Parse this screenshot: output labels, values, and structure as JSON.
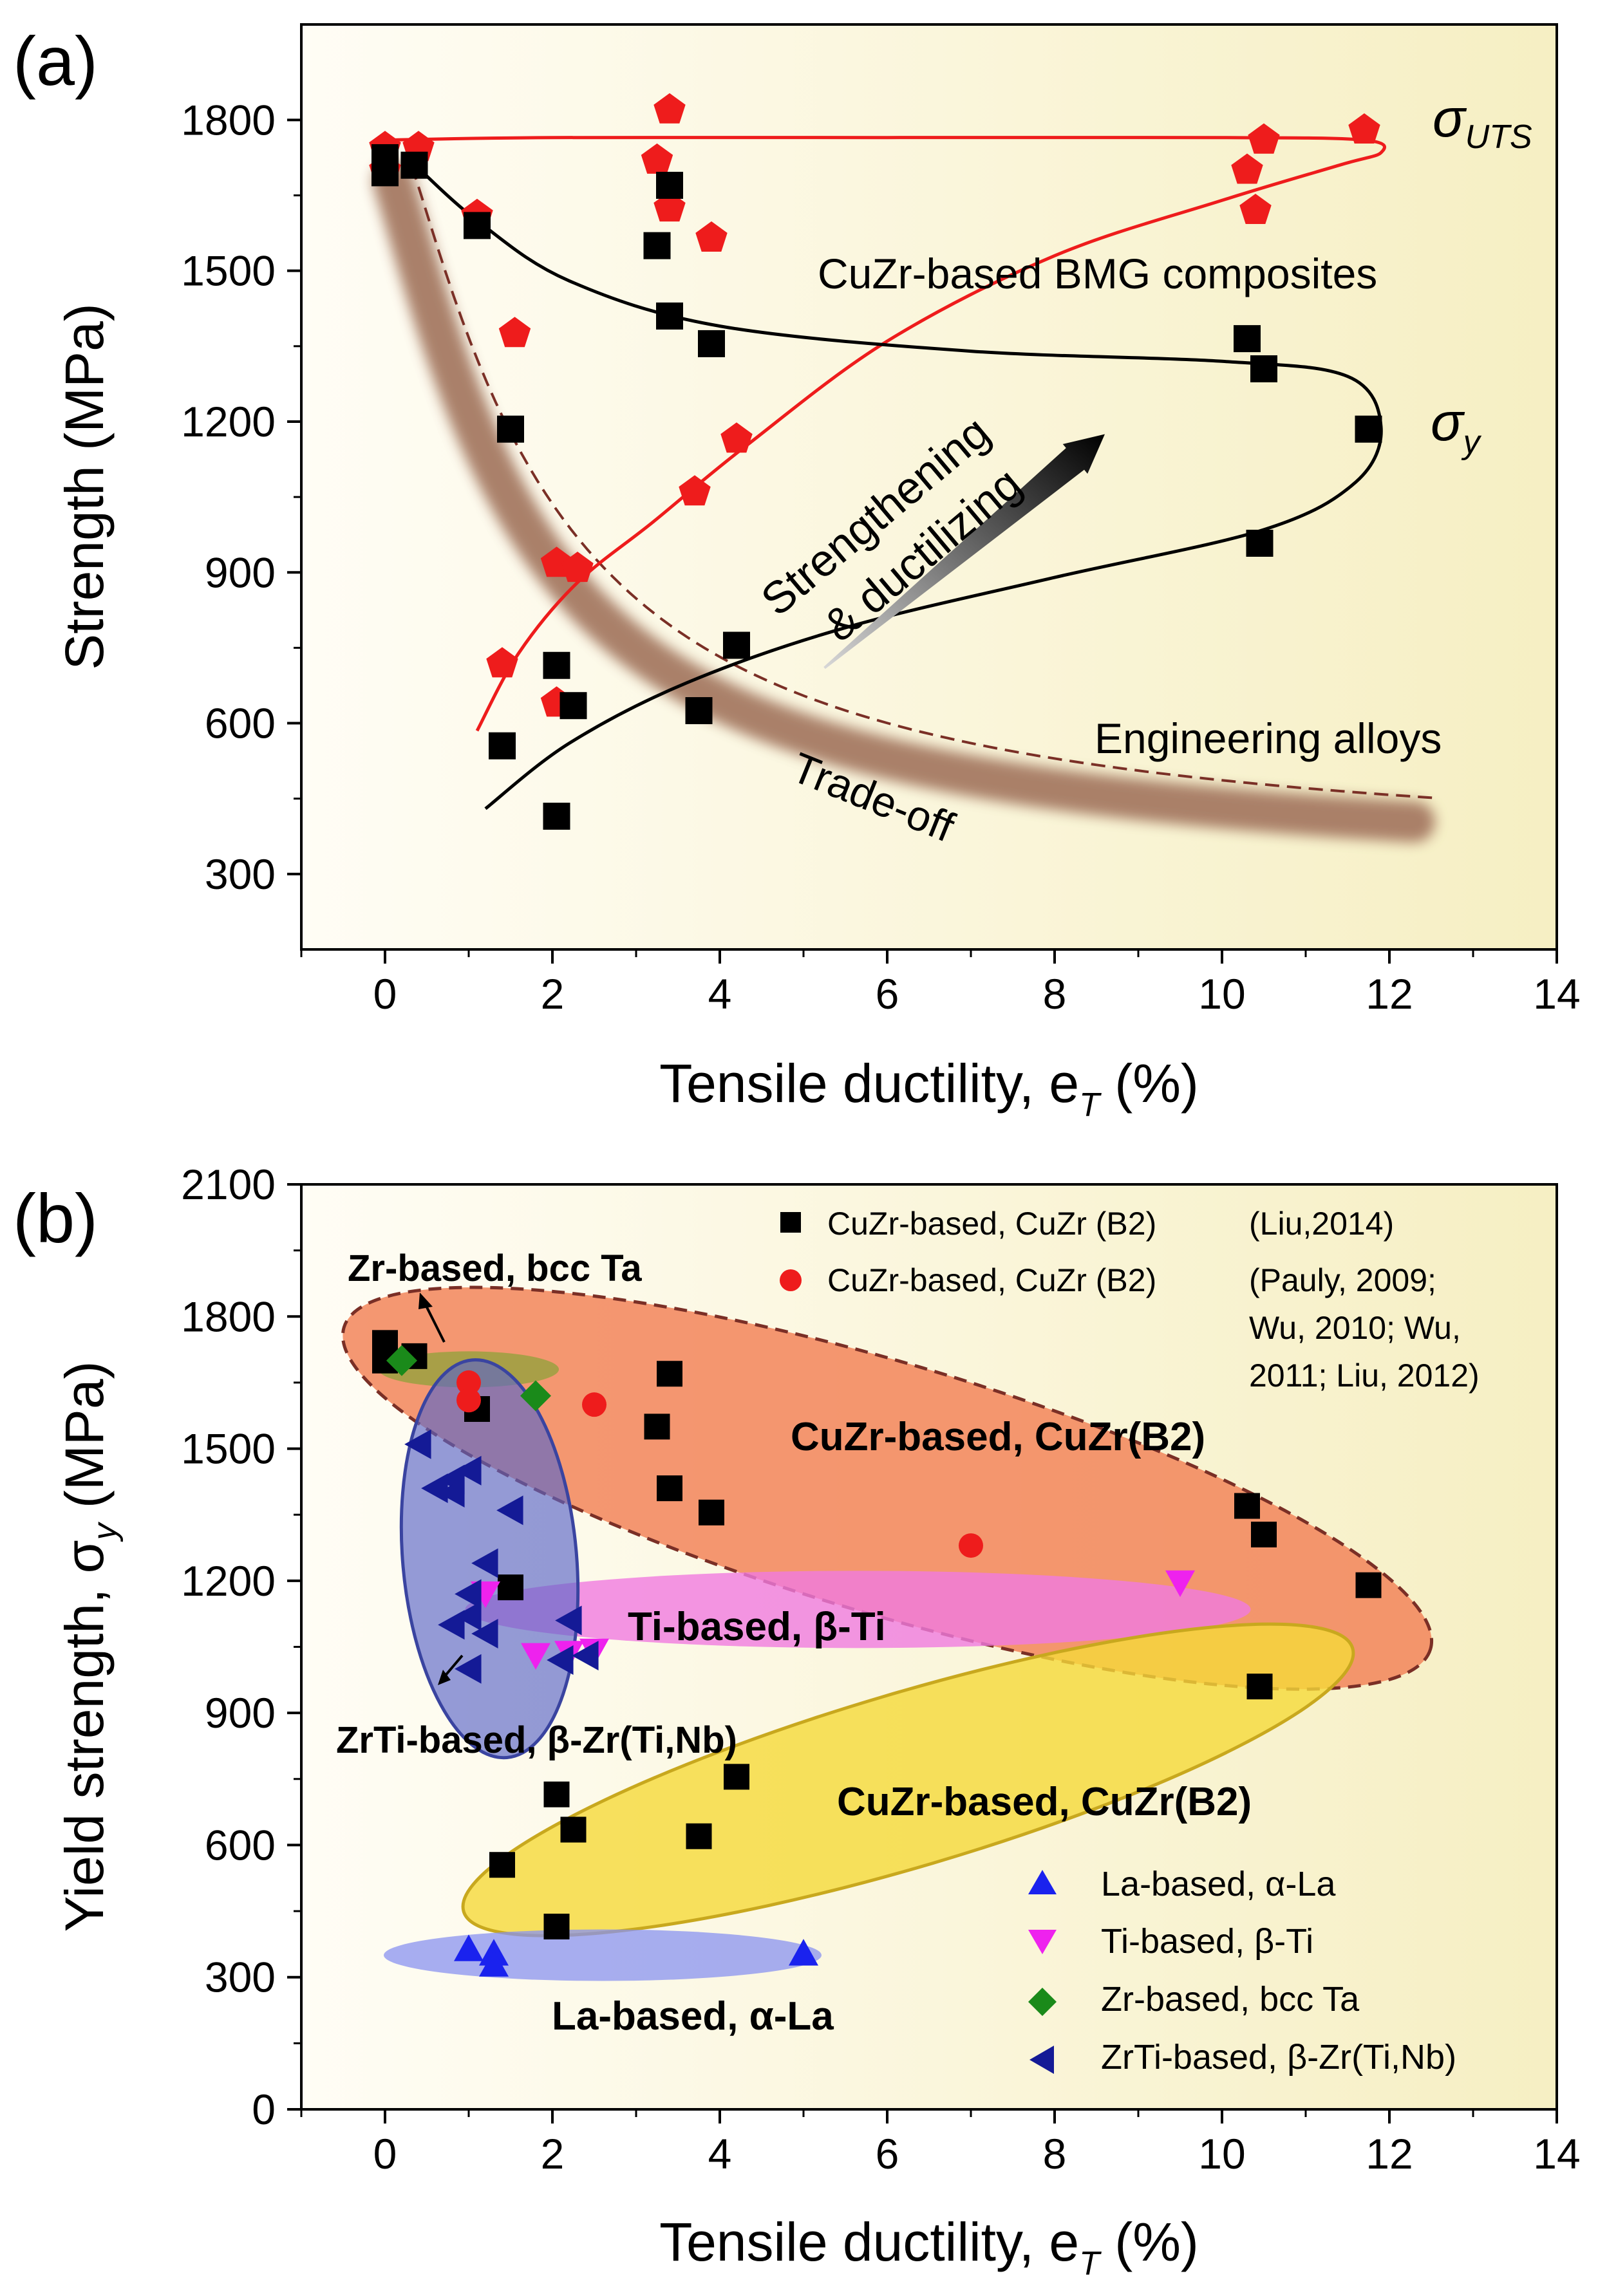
{
  "chart_data": [
    {
      "panel_label": "(a)",
      "type": "scatter",
      "xlabel": "Tensile ductility, e",
      "xlabel_sub": "T",
      "xlabel_unit": " (%)",
      "ylabel": "Strength (MPa)",
      "xlim": [
        -1,
        14
      ],
      "ylim": [
        150,
        1990
      ],
      "xticks": [
        0,
        2,
        4,
        6,
        8,
        10,
        12,
        14
      ],
      "yticks": [
        300,
        600,
        900,
        1200,
        1500,
        1800
      ],
      "colors": {
        "bg_left": "#fefcf3",
        "bg_right": "#f7f1c8",
        "red": "#ee1c1c",
        "black": "#000000",
        "band": "#a67a63",
        "band_dash": "#7a2f26"
      },
      "series": [
        {
          "name": "sigma_UTS",
          "marker": "pentagon",
          "color": "#ee1c1c",
          "points": [
            [
              0,
              1745
            ],
            [
              0,
              1700
            ],
            [
              0.4,
              1745
            ],
            [
              1.1,
              1610
            ],
            [
              1.55,
              1375
            ],
            [
              2.05,
              918
            ],
            [
              2.3,
              908
            ],
            [
              1.4,
              718
            ],
            [
              2.05,
              640
            ],
            [
              3.25,
              1720
            ],
            [
              3.4,
              1820
            ],
            [
              3.4,
              1625
            ],
            [
              3.9,
              1565
            ],
            [
              3.7,
              1060
            ],
            [
              4.2,
              1165
            ],
            [
              10.3,
              1700
            ],
            [
              10.4,
              1620
            ],
            [
              10.5,
              1760
            ],
            [
              11.7,
              1780
            ]
          ]
        },
        {
          "name": "sigma_y",
          "marker": "square",
          "color": "#000000",
          "points": [
            [
              0,
              1725
            ],
            [
              0,
              1695
            ],
            [
              0.35,
              1710
            ],
            [
              1.1,
              1590
            ],
            [
              1.5,
              1185
            ],
            [
              1.4,
              555
            ],
            [
              2.05,
              715
            ],
            [
              2.05,
              415
            ],
            [
              2.25,
              635
            ],
            [
              3.25,
              1550
            ],
            [
              3.4,
              1670
            ],
            [
              3.4,
              1410
            ],
            [
              3.9,
              1355
            ],
            [
              3.75,
              625
            ],
            [
              4.2,
              755
            ],
            [
              10.3,
              1365
            ],
            [
              10.5,
              1305
            ],
            [
              10.45,
              958
            ],
            [
              11.75,
              1185
            ]
          ]
        }
      ],
      "annotations": [
        "CuZr-based BMG composites",
        "Engineering alloys",
        "Trade-off",
        "Strengthening",
        "& ductilizing"
      ],
      "curve_labels": {
        "uts_main": "σ",
        "uts_sub": "UTS",
        "y_main": "σ",
        "y_sub": "y"
      }
    },
    {
      "panel_label": "(b)",
      "type": "scatter",
      "xlabel": "Tensile ductility, e",
      "xlabel_sub": "T",
      "xlabel_unit": " (%)",
      "ylabel": "Yield strength, σ",
      "ylabel_sub": "y",
      "ylabel_unit": " (MPa)",
      "xlim": [
        -1,
        14
      ],
      "ylim": [
        0,
        2100
      ],
      "xticks": [
        0,
        2,
        4,
        6,
        8,
        10,
        12,
        14
      ],
      "yticks": [
        0,
        300,
        600,
        900,
        1200,
        1500,
        1800,
        2100
      ],
      "colors": {
        "square": "#000000",
        "circle": "#ee1c1c",
        "triangle_up": "#1a22ee",
        "triangle_down": "#ee22ee",
        "diamond": "#1a8a1a",
        "triangle_left": "#141a96"
      },
      "series": [
        {
          "name": "CuZr-based, CuZr (B2)",
          "marker": "square",
          "color": "#000000",
          "points": [
            [
              0,
              1740
            ],
            [
              0,
              1700
            ],
            [
              0.35,
              1710
            ],
            [
              1.1,
              1590
            ],
            [
              1.5,
              1185
            ],
            [
              1.4,
              555
            ],
            [
              2.05,
              715
            ],
            [
              2.05,
              415
            ],
            [
              2.25,
              635
            ],
            [
              3.25,
              1550
            ],
            [
              3.4,
              1670
            ],
            [
              3.4,
              1410
            ],
            [
              3.9,
              1355
            ],
            [
              3.75,
              620
            ],
            [
              4.2,
              755
            ],
            [
              10.3,
              1370
            ],
            [
              10.5,
              1305
            ],
            [
              10.45,
              960
            ],
            [
              11.75,
              1190
            ]
          ]
        },
        {
          "name": "CuZr-based, CuZr (B2)",
          "marker": "circle",
          "color": "#ee1c1c",
          "points": [
            [
              1,
              1650
            ],
            [
              1,
              1610
            ],
            [
              2.5,
              1600
            ],
            [
              7,
              1280
            ]
          ]
        },
        {
          "name": "La-based, α-La",
          "marker": "triangle-up",
          "color": "#1a22ee",
          "points": [
            [
              1,
              365
            ],
            [
              1.3,
              355
            ],
            [
              1.3,
              330
            ],
            [
              5,
              355
            ]
          ]
        },
        {
          "name": "Ti-based, β-Ti",
          "marker": "triangle-down",
          "color": "#ee22ee",
          "points": [
            [
              1.2,
              1170
            ],
            [
              1.8,
              1030
            ],
            [
              2.2,
              1035
            ],
            [
              2.5,
              1040
            ],
            [
              9.5,
              1195
            ]
          ]
        },
        {
          "name": "Zr-based, bcc Ta",
          "marker": "diamond",
          "color": "#1a8a1a",
          "points": [
            [
              0.2,
              1700
            ],
            [
              1.8,
              1620
            ]
          ]
        },
        {
          "name": "ZrTi-based, β-Zr(Ti,Nb)",
          "marker": "triangle-left",
          "color": "#141a96",
          "points": [
            [
              0.4,
              1510
            ],
            [
              0.6,
              1410
            ],
            [
              0.8,
              1430
            ],
            [
              1,
              1450
            ],
            [
              0.8,
              1400
            ],
            [
              1.5,
              1360
            ],
            [
              1.2,
              1240
            ],
            [
              1,
              1170
            ],
            [
              0.8,
              1100
            ],
            [
              1,
              1120
            ],
            [
              1.2,
              1080
            ],
            [
              1,
              1000
            ],
            [
              2.2,
              1110
            ],
            [
              2.1,
              1020
            ],
            [
              2.4,
              1030
            ]
          ]
        }
      ],
      "legend_top": [
        {
          "marker": "square",
          "text": "CuZr-based,  CuZr (B2)",
          "ref": [
            "(Liu,2014)"
          ]
        },
        {
          "marker": "circle",
          "text": "CuZr-based,  CuZr (B2)",
          "ref": [
            "(Pauly, 2009;",
            "Wu, 2010; Wu,",
            "2011; Liu, 2012)"
          ]
        }
      ],
      "legend_bottom": [
        "La-based, α-La",
        "Ti-based, β-Ti",
        "Zr-based, bcc Ta",
        "ZrTi-based, β-Zr(Ti,Nb)"
      ],
      "region_labels": [
        "Zr-based, bcc Ta",
        "CuZr-based, CuZr(B2)",
        "Ti-based, β-Ti",
        "ZrTi-based, β-Zr(Ti,Nb)",
        "CuZr-based, CuZr(B2)",
        "La-based, α-La"
      ]
    }
  ]
}
